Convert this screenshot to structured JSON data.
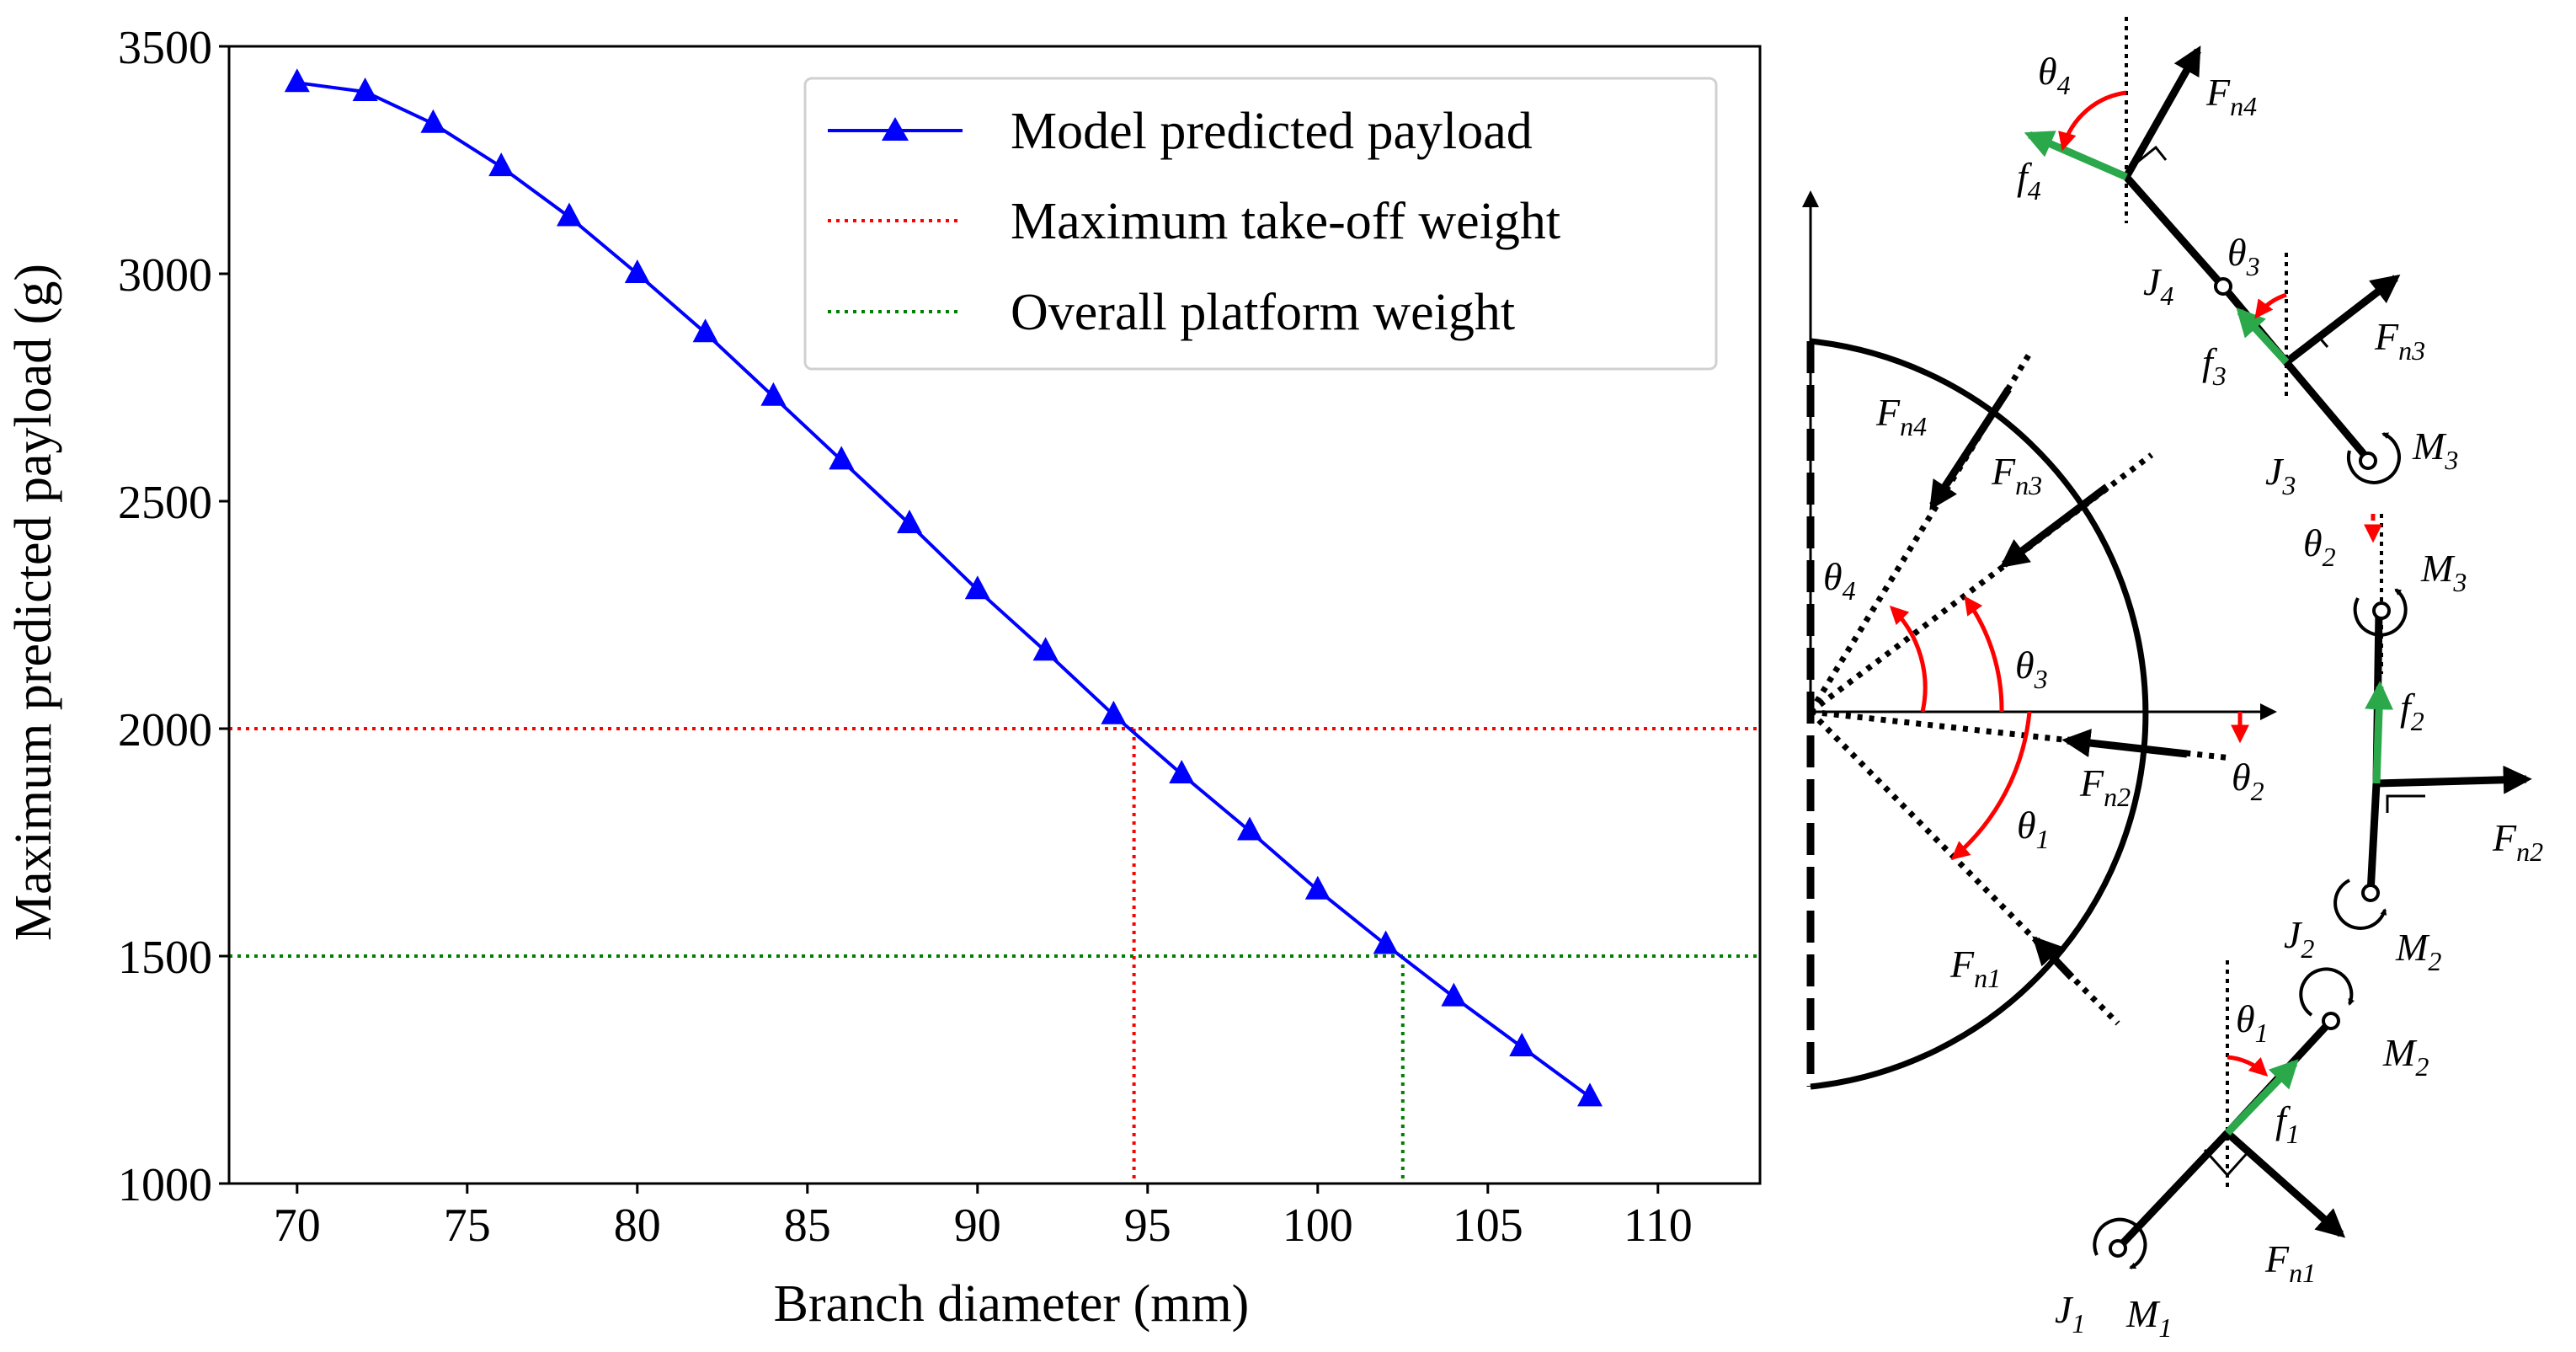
{
  "chart_data": {
    "type": "line",
    "xlabel": "Branch diameter (mm)",
    "ylabel": "Maximum predicted payload (g)",
    "xlim": [
      68,
      113
    ],
    "ylim": [
      1000,
      3500
    ],
    "xticks": [
      "70",
      "75",
      "80",
      "85",
      "90",
      "95",
      "100",
      "105",
      "110"
    ],
    "yticks": [
      "1000",
      "1500",
      "2000",
      "2500",
      "3000",
      "3500"
    ],
    "grid": false,
    "legend_position": "top-right",
    "series": [
      {
        "name": "Model predicted payload",
        "color": "#0000ff",
        "marker": "triangle",
        "x": [
          70,
          72,
          74,
          76,
          78,
          80,
          82,
          84,
          86,
          88,
          90,
          92,
          94,
          96,
          98,
          100,
          102,
          104,
          106,
          108
        ],
        "y": [
          3420,
          3400,
          3330,
          3235,
          3125,
          3000,
          2870,
          2730,
          2590,
          2450,
          2305,
          2170,
          2030,
          1900,
          1775,
          1645,
          1525,
          1410,
          1300,
          1190
        ]
      }
    ],
    "reference_lines": [
      {
        "name": "Maximum take-off weight",
        "color": "#ff0000",
        "y": 2000,
        "x": 94.6
      },
      {
        "name": "Overall platform weight",
        "color": "#008000",
        "y": 1500,
        "x": 102.5
      }
    ]
  },
  "diagram": {
    "labels": {
      "Fn4_left": "F",
      "Fn3_left": "F",
      "Fn2_left": "F",
      "Fn1_left": "F",
      "theta4_left": "θ",
      "theta3_left": "θ",
      "theta2_left": "θ",
      "theta1_left": "θ",
      "theta4_right": "θ",
      "Fn4_right": "F",
      "f4": "f",
      "J4": "J",
      "theta3_right": "θ",
      "Fn3_right": "F",
      "f3": "f",
      "J3": "J",
      "M3_top": "M",
      "theta2_right": "θ",
      "M3_mid": "M",
      "f2": "f",
      "Fn2_right": "F",
      "J2": "J",
      "M2_mid": "M",
      "theta1_right": "θ",
      "M2_bot": "M",
      "f1": "f",
      "Fn1_right": "F",
      "J1": "J",
      "M1": "M"
    },
    "subscripts": {
      "n4": "n4",
      "n3": "n3",
      "n2": "n2",
      "n1": "n1",
      "s4": "4",
      "s3": "3",
      "s2": "2",
      "s1": "1"
    },
    "colors": {
      "arrow": "#000000",
      "angle": "#ff0000",
      "friction": "#2aa84a"
    }
  }
}
